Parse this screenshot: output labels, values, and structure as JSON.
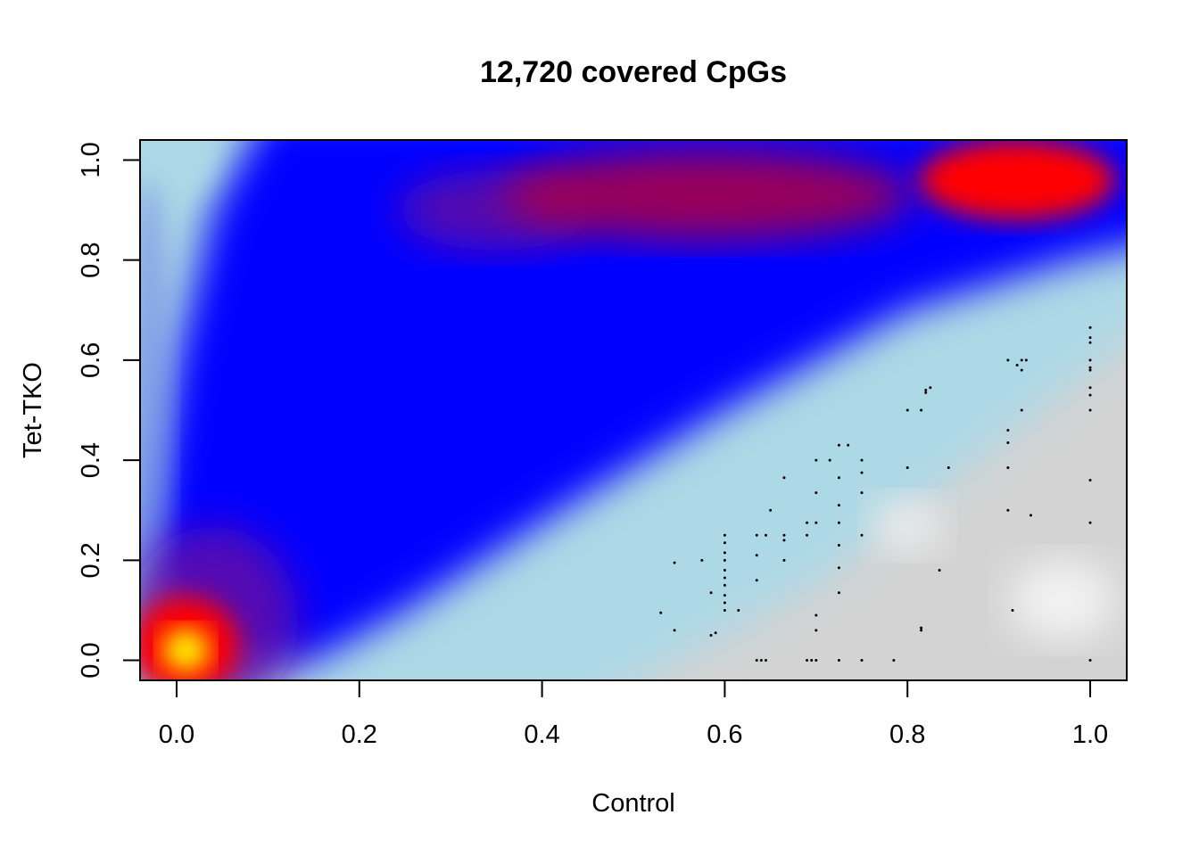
{
  "chart_data": {
    "type": "scatter",
    "title": "12,720 covered CpGs",
    "xlabel": "Control",
    "ylabel": "Tet-TKO",
    "xlim": [
      -0.04,
      1.04
    ],
    "ylim": [
      -0.04,
      1.04
    ],
    "x_ticks": [
      "0.0",
      "0.2",
      "0.4",
      "0.6",
      "0.8",
      "1.0"
    ],
    "y_ticks": [
      "0.0",
      "0.2",
      "0.4",
      "0.6",
      "0.8",
      "1.0"
    ],
    "x_tick_values": [
      0,
      0.2,
      0.4,
      0.6,
      0.8,
      1.0
    ],
    "y_tick_values": [
      0,
      0.2,
      0.4,
      0.6,
      0.8,
      1.0
    ],
    "grid": false,
    "legend": "none",
    "density_colors": [
      "#d3d3d3",
      "#add8e6",
      "#0000ff",
      "#ff0000",
      "#ffff00"
    ],
    "point_color": "#000000",
    "density_peaks": [
      {
        "x": 0.01,
        "y": 0.02,
        "level": 1.0
      },
      {
        "x": 0.93,
        "y": 0.96,
        "level": 0.85
      },
      {
        "x": 0.4,
        "y": 0.92,
        "level": 0.6
      },
      {
        "x": 0.65,
        "y": 0.93,
        "level": 0.62
      },
      {
        "x": 0.25,
        "y": 0.88,
        "level": 0.45
      }
    ],
    "outlier_points": [
      {
        "x": 0.53,
        "y": 0.095
      },
      {
        "x": 0.545,
        "y": 0.06
      },
      {
        "x": 0.545,
        "y": 0.195
      },
      {
        "x": 0.575,
        "y": 0.2
      },
      {
        "x": 0.585,
        "y": 0.135
      },
      {
        "x": 0.585,
        "y": 0.05
      },
      {
        "x": 0.59,
        "y": 0.055
      },
      {
        "x": 0.6,
        "y": 0.25
      },
      {
        "x": 0.6,
        "y": 0.235
      },
      {
        "x": 0.6,
        "y": 0.215
      },
      {
        "x": 0.6,
        "y": 0.2
      },
      {
        "x": 0.6,
        "y": 0.18
      },
      {
        "x": 0.6,
        "y": 0.165
      },
      {
        "x": 0.6,
        "y": 0.15
      },
      {
        "x": 0.6,
        "y": 0.13
      },
      {
        "x": 0.6,
        "y": 0.115
      },
      {
        "x": 0.6,
        "y": 0.1
      },
      {
        "x": 0.615,
        "y": 0.1
      },
      {
        "x": 0.635,
        "y": 0.25
      },
      {
        "x": 0.635,
        "y": 0.21
      },
      {
        "x": 0.635,
        "y": 0.16
      },
      {
        "x": 0.635,
        "y": 0.0
      },
      {
        "x": 0.64,
        "y": 0.0
      },
      {
        "x": 0.645,
        "y": 0.0
      },
      {
        "x": 0.645,
        "y": 0.25
      },
      {
        "x": 0.65,
        "y": 0.3
      },
      {
        "x": 0.665,
        "y": 0.365
      },
      {
        "x": 0.665,
        "y": 0.25
      },
      {
        "x": 0.665,
        "y": 0.24
      },
      {
        "x": 0.665,
        "y": 0.2
      },
      {
        "x": 0.69,
        "y": 0.275
      },
      {
        "x": 0.69,
        "y": 0.25
      },
      {
        "x": 0.69,
        "y": 0.0
      },
      {
        "x": 0.695,
        "y": 0.0
      },
      {
        "x": 0.7,
        "y": 0.4
      },
      {
        "x": 0.7,
        "y": 0.335
      },
      {
        "x": 0.7,
        "y": 0.275
      },
      {
        "x": 0.7,
        "y": 0.09
      },
      {
        "x": 0.7,
        "y": 0.06
      },
      {
        "x": 0.7,
        "y": 0.0
      },
      {
        "x": 0.715,
        "y": 0.4
      },
      {
        "x": 0.725,
        "y": 0.43
      },
      {
        "x": 0.725,
        "y": 0.365
      },
      {
        "x": 0.725,
        "y": 0.31
      },
      {
        "x": 0.725,
        "y": 0.275
      },
      {
        "x": 0.725,
        "y": 0.23
      },
      {
        "x": 0.725,
        "y": 0.185
      },
      {
        "x": 0.725,
        "y": 0.135
      },
      {
        "x": 0.725,
        "y": 0.0
      },
      {
        "x": 0.735,
        "y": 0.43
      },
      {
        "x": 0.75,
        "y": 0.4
      },
      {
        "x": 0.75,
        "y": 0.375
      },
      {
        "x": 0.75,
        "y": 0.335
      },
      {
        "x": 0.75,
        "y": 0.25
      },
      {
        "x": 0.75,
        "y": 0.0
      },
      {
        "x": 0.785,
        "y": 0.0
      },
      {
        "x": 0.8,
        "y": 0.5
      },
      {
        "x": 0.8,
        "y": 0.385
      },
      {
        "x": 0.815,
        "y": 0.5
      },
      {
        "x": 0.815,
        "y": 0.06
      },
      {
        "x": 0.815,
        "y": 0.065
      },
      {
        "x": 0.82,
        "y": 0.535
      },
      {
        "x": 0.82,
        "y": 0.54
      },
      {
        "x": 0.825,
        "y": 0.545
      },
      {
        "x": 0.835,
        "y": 0.18
      },
      {
        "x": 0.845,
        "y": 0.385
      },
      {
        "x": 0.91,
        "y": 0.6
      },
      {
        "x": 0.91,
        "y": 0.46
      },
      {
        "x": 0.91,
        "y": 0.435
      },
      {
        "x": 0.91,
        "y": 0.385
      },
      {
        "x": 0.91,
        "y": 0.3
      },
      {
        "x": 0.915,
        "y": 0.1
      },
      {
        "x": 0.92,
        "y": 0.59
      },
      {
        "x": 0.925,
        "y": 0.6
      },
      {
        "x": 0.925,
        "y": 0.58
      },
      {
        "x": 0.925,
        "y": 0.5
      },
      {
        "x": 0.93,
        "y": 0.6
      },
      {
        "x": 0.935,
        "y": 0.29
      },
      {
        "x": 1.0,
        "y": 0.665
      },
      {
        "x": 1.0,
        "y": 0.645
      },
      {
        "x": 1.0,
        "y": 0.635
      },
      {
        "x": 1.0,
        "y": 0.6
      },
      {
        "x": 1.0,
        "y": 0.585
      },
      {
        "x": 1.0,
        "y": 0.58
      },
      {
        "x": 1.0,
        "y": 0.545
      },
      {
        "x": 1.0,
        "y": 0.53
      },
      {
        "x": 1.0,
        "y": 0.5
      },
      {
        "x": 1.0,
        "y": 0.36
      },
      {
        "x": 1.0,
        "y": 0.275
      },
      {
        "x": 1.0,
        "y": 0.0
      }
    ]
  }
}
